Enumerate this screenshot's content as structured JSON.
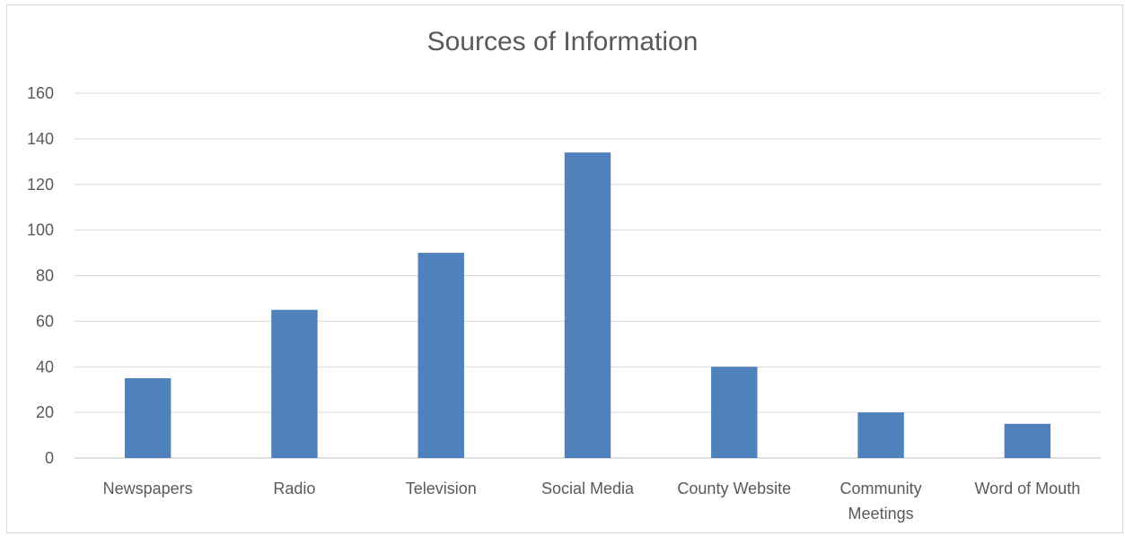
{
  "chart_data": {
    "type": "bar",
    "title": "Sources of Information",
    "categories": [
      "Newspapers",
      "Radio",
      "Television",
      "Social Media",
      "County Website",
      "Community Meetings",
      "Word of Mouth"
    ],
    "category_lines": [
      [
        "Newspapers"
      ],
      [
        "Radio"
      ],
      [
        "Television"
      ],
      [
        "Social Media"
      ],
      [
        "County Website"
      ],
      [
        "Community",
        "Meetings"
      ],
      [
        "Word of Mouth"
      ]
    ],
    "values": [
      35,
      65,
      90,
      134,
      40,
      20,
      15
    ],
    "xlabel": "",
    "ylabel": "",
    "ylim": [
      0,
      160
    ],
    "yticks": [
      0,
      20,
      40,
      60,
      80,
      100,
      120,
      140,
      160
    ],
    "grid": true,
    "legend": "none",
    "colors": {
      "bar": "#4f81bd",
      "grid": "#d9d9d9",
      "axis": "#bfbfbf",
      "text": "#595959"
    }
  }
}
